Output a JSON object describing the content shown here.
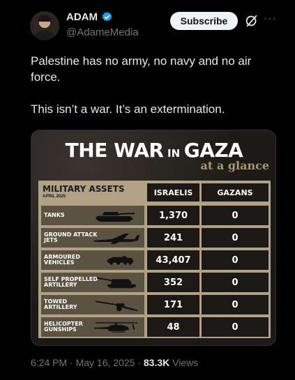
{
  "author": {
    "display_name": "ADAM",
    "handle": "@AdameMedia",
    "verified": true
  },
  "actions": {
    "subscribe_label": "Subscribe",
    "grok_icon": "grok-icon",
    "more_icon": "more-icon"
  },
  "tweet": {
    "paragraphs": [
      "Palestine has no army, no navy and no air force.",
      "This isn’t a war. It’s an extermination."
    ]
  },
  "poster": {
    "title_1": "THE WAR",
    "title_2": "IN",
    "title_3": "GAZA",
    "subtitle": "at a glance",
    "table_title": "MILITARY ASSETS",
    "table_date": "APRIL 2025",
    "col_israelis": "ISRAELIS",
    "col_gazans": "GAZANS",
    "rows": [
      {
        "label": "TANKS",
        "israelis": "1,370",
        "gazans": "0",
        "icon": "tank-icon"
      },
      {
        "label": "GROUND ATTACK JETS",
        "israelis": "241",
        "gazans": "0",
        "icon": "jet-icon"
      },
      {
        "label": "ARMOURED VEHICLES",
        "israelis": "43,407",
        "gazans": "0",
        "icon": "armoured-vehicle-icon"
      },
      {
        "label": "SELF PROPELLED ARTILLERY",
        "israelis": "352",
        "gazans": "0",
        "icon": "self-propelled-artillery-icon"
      },
      {
        "label": "TOWED ARTILLERY",
        "israelis": "171",
        "gazans": "0",
        "icon": "towed-artillery-icon"
      },
      {
        "label": "HELICOPTER GUNSHIPS",
        "israelis": "48",
        "gazans": "0",
        "icon": "helicopter-icon"
      }
    ]
  },
  "meta": {
    "time": "6:24 PM",
    "separator": "·",
    "date": "May 16, 2025",
    "views_count": "83.3K",
    "views_label": "Views"
  },
  "colors": {
    "verified": "#1d9bf0",
    "poster_tan": "#b1a285",
    "poster_dark": "#1b1815",
    "poster_olive": "#5b5241"
  }
}
